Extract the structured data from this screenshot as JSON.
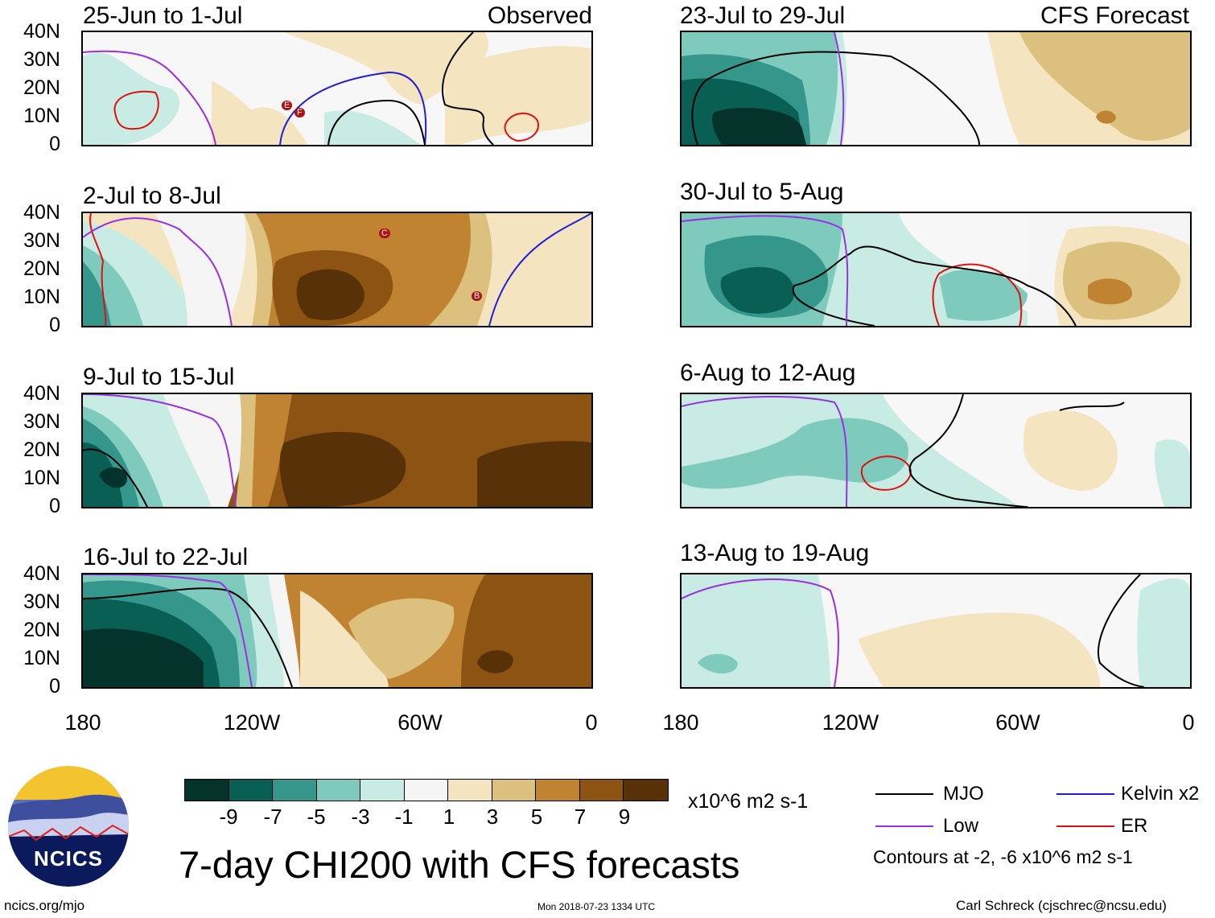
{
  "panels": [
    {
      "title": "25-Jun to 1-Jul",
      "tag": "Observed"
    },
    {
      "title": "23-Jul to 29-Jul",
      "tag": "CFS Forecast"
    },
    {
      "title": "2-Jul to 8-Jul",
      "tag": ""
    },
    {
      "title": "30-Jul to 5-Aug",
      "tag": ""
    },
    {
      "title": "9-Jul to 15-Jul",
      "tag": ""
    },
    {
      "title": "6-Aug to 12-Aug",
      "tag": ""
    },
    {
      "title": "16-Jul to 22-Jul",
      "tag": ""
    },
    {
      "title": "13-Aug to 19-Aug",
      "tag": ""
    }
  ],
  "lat_labels": [
    "40N",
    "30N",
    "20N",
    "10N",
    "0"
  ],
  "lon_labels": [
    "180",
    "120W",
    "60W",
    "0"
  ],
  "storm_markers": [
    "E",
    "F",
    "C",
    "B"
  ],
  "colorbar": {
    "colors": [
      "#03332a",
      "#0a5f55",
      "#35968b",
      "#7ecbbe",
      "#c8ebe4",
      "#f5f5f5",
      "#f4e5c0",
      "#dbc07e",
      "#c08332",
      "#8d5312",
      "#573208"
    ],
    "ticks": [
      "-9",
      "-7",
      "-5",
      "-3",
      "-1",
      "1",
      "3",
      "5",
      "7",
      "9"
    ],
    "units": "x10^6 m2 s-1"
  },
  "title": "7-day CHI200 with CFS forecasts",
  "legend": {
    "mjo": {
      "label": "MJO",
      "color": "#000000"
    },
    "kelvin": {
      "label": "Kelvin x2",
      "color": "#1f1fd6"
    },
    "low": {
      "label": "Low",
      "color": "#9a30e0"
    },
    "er": {
      "label": "ER",
      "color": "#e01010"
    },
    "contours": "Contours at -2, -6 x10^6 m2 s-1"
  },
  "logo": {
    "text": "NCICS"
  },
  "footer": {
    "url": "ncics.org/mjo",
    "timestamp": "Mon 2018-07-23 1334 UTC",
    "author": "Carl Schreck (cjschrec@ncsu.edu)"
  }
}
